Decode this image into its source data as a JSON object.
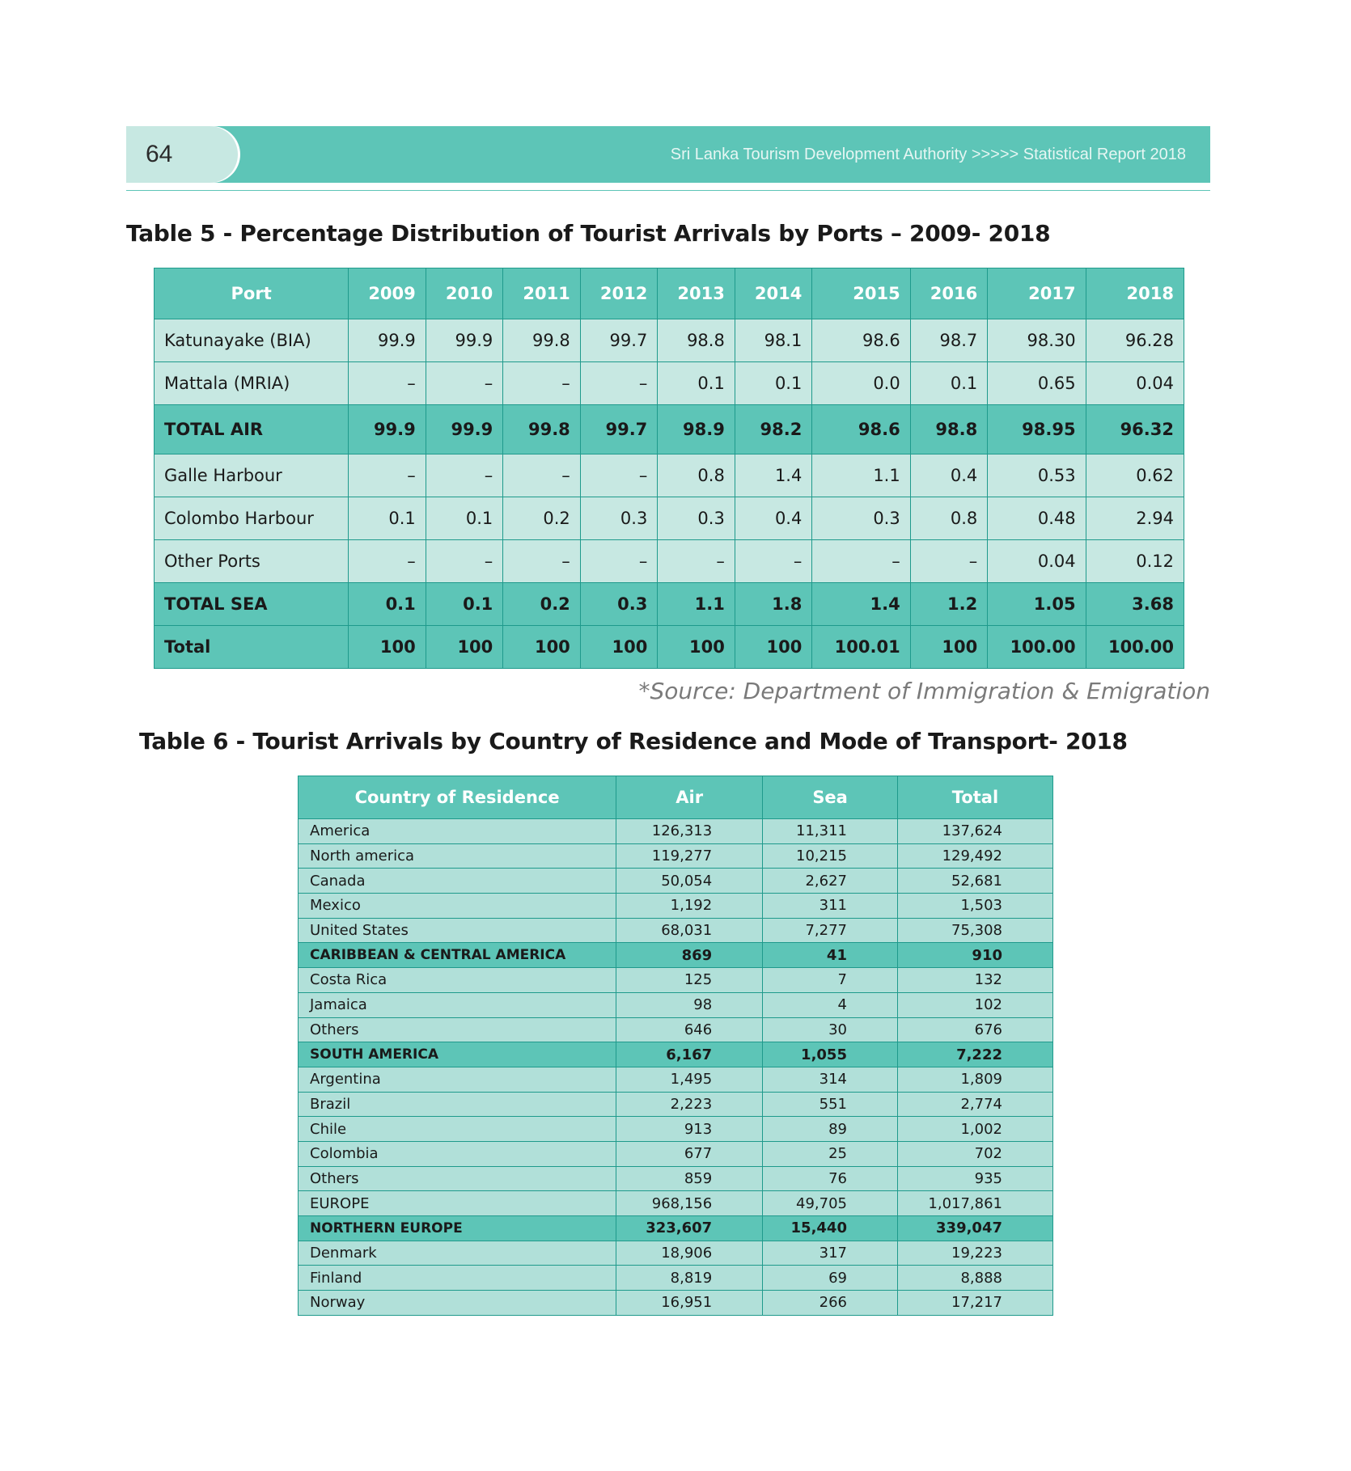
{
  "header": {
    "page_number": "64",
    "running_title": "Sri Lanka Tourism Development Authority >>>>> Statistical Report 2018",
    "accent_color": "#5dc5b7",
    "tab_color": "#c7e8e2"
  },
  "table5": {
    "title": "Table 5 - Percentage Distribution of Tourist Arrivals by Ports – 2009- 2018",
    "columns": [
      "Port",
      "2009",
      "2010",
      "2011",
      "2012",
      "2013",
      "2014",
      "2015",
      "2016",
      "2017",
      "2018"
    ],
    "rows": [
      {
        "cells": [
          "Katunayake (BIA)",
          "99.9",
          "99.9",
          "99.8",
          "99.7",
          "98.8",
          "98.1",
          "98.6",
          "98.7",
          "98.30",
          "96.28"
        ],
        "total": false
      },
      {
        "cells": [
          "Mattala   (MRIA)",
          "–",
          "–",
          "–",
          "–",
          "0.1",
          "0.1",
          "0.0",
          "0.1",
          "0.65",
          "0.04"
        ],
        "total": false
      },
      {
        "cells": [
          "TOTAL AIR",
          "99.9",
          "99.9",
          "99.8",
          "99.7",
          "98.9",
          "98.2",
          "98.6",
          "98.8",
          "98.95",
          "96.32"
        ],
        "total": true,
        "tall": true
      },
      {
        "cells": [
          "Galle Harbour",
          "–",
          "–",
          "–",
          "–",
          "0.8",
          "1.4",
          "1.1",
          "0.4",
          "0.53",
          "0.62"
        ],
        "total": false
      },
      {
        "cells": [
          "Colombo Harbour",
          "0.1",
          "0.1",
          "0.2",
          "0.3",
          "0.3",
          "0.4",
          "0.3",
          "0.8",
          "0.48",
          "2.94"
        ],
        "total": false
      },
      {
        "cells": [
          "Other Ports",
          "–",
          "–",
          "–",
          "–",
          "–",
          "–",
          "–",
          "–",
          "0.04",
          "0.12"
        ],
        "total": false
      },
      {
        "cells": [
          "TOTAL SEA",
          "0.1",
          "0.1",
          "0.2",
          "0.3",
          "1.1",
          "1.8",
          "1.4",
          "1.2",
          "1.05",
          "3.68"
        ],
        "total": true
      },
      {
        "cells": [
          "Total",
          "100",
          "100",
          "100",
          "100",
          "100",
          "100",
          "100.01",
          "100",
          "100.00",
          "100.00"
        ],
        "total": true
      }
    ],
    "source": "*Source: Department of Immigration & Emigration"
  },
  "table6": {
    "title": "Table 6 - Tourist Arrivals by Country of Residence and Mode of Transport- 2018",
    "columns": [
      "Country of Residence",
      "Air",
      "Sea",
      "Total"
    ],
    "rows": [
      {
        "cells": [
          "America",
          "126,313",
          "11,311",
          "137,624"
        ],
        "region": false
      },
      {
        "cells": [
          "North america",
          "119,277",
          "10,215",
          "129,492"
        ],
        "region": false
      },
      {
        "cells": [
          "Canada",
          "50,054",
          "2,627",
          "52,681"
        ],
        "region": false
      },
      {
        "cells": [
          "Mexico",
          "1,192",
          "311",
          "1,503"
        ],
        "region": false
      },
      {
        "cells": [
          "United States",
          "68,031",
          "7,277",
          "75,308"
        ],
        "region": false
      },
      {
        "cells": [
          "CARIBBEAN & CENTRAL AMERICA",
          "869",
          "41",
          "910"
        ],
        "region": true
      },
      {
        "cells": [
          "Costa Rica",
          "125",
          "7",
          "132"
        ],
        "region": false
      },
      {
        "cells": [
          "Jamaica",
          "98",
          "4",
          "102"
        ],
        "region": false
      },
      {
        "cells": [
          "Others",
          "646",
          "30",
          "676"
        ],
        "region": false
      },
      {
        "cells": [
          " SOUTH AMERICA",
          "6,167",
          "1,055",
          "7,222"
        ],
        "region": true
      },
      {
        "cells": [
          "Argentina",
          "1,495",
          "314",
          "1,809"
        ],
        "region": false
      },
      {
        "cells": [
          "Brazil",
          "2,223",
          "551",
          "2,774"
        ],
        "region": false
      },
      {
        "cells": [
          "Chile",
          "913",
          "89",
          "1,002"
        ],
        "region": false
      },
      {
        "cells": [
          "Colombia",
          "677",
          "25",
          "702"
        ],
        "region": false
      },
      {
        "cells": [
          "Others",
          "859",
          "76",
          "935"
        ],
        "region": false
      },
      {
        "cells": [
          "EUROPE",
          "968,156",
          "49,705",
          "1,017,861"
        ],
        "region": false
      },
      {
        "cells": [
          "NORTHERN EUROPE",
          "323,607",
          "15,440",
          "339,047"
        ],
        "region": true
      },
      {
        "cells": [
          "Denmark",
          "18,906",
          "317",
          "19,223"
        ],
        "region": false
      },
      {
        "cells": [
          "Finland",
          "8,819",
          "69",
          "8,888"
        ],
        "region": false
      },
      {
        "cells": [
          "Norway",
          "16,951",
          "266",
          "17,217"
        ],
        "region": false
      }
    ]
  }
}
